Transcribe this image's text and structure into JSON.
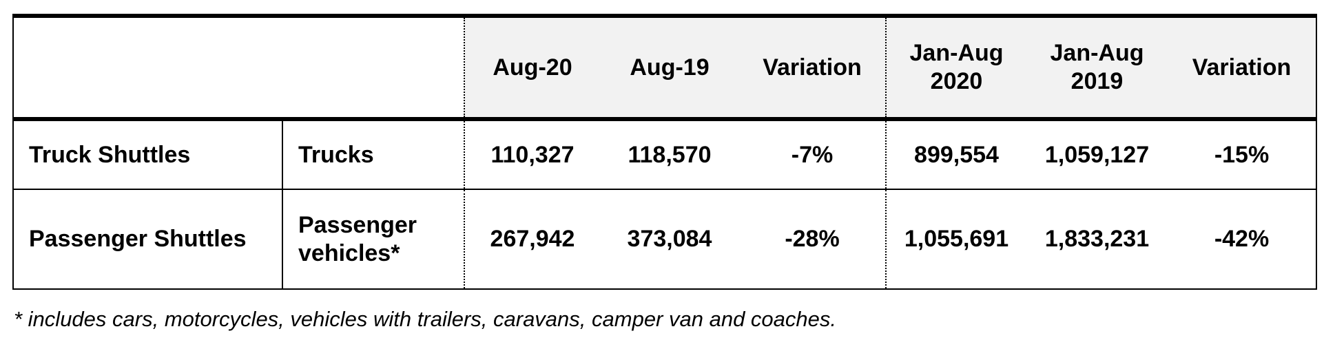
{
  "table": {
    "header": [
      "",
      "",
      "Aug-20",
      "Aug-19",
      "Variation",
      "Jan-Aug 2020",
      "Jan-Aug 2019",
      "Variation"
    ],
    "rows": [
      [
        "Truck Shuttles",
        "Trucks",
        "110,327",
        "118,570",
        "-7%",
        "899,554",
        "1,059,127",
        "-15%"
      ],
      [
        "Passenger Shuttles",
        "Passenger vehicles*",
        "267,942",
        "373,084",
        "-28%",
        "1,055,691",
        "1,833,231",
        "-42%"
      ]
    ]
  },
  "footnote": "* includes cars, motorcycles, vehicles with trailers, caravans, camper van and coaches."
}
